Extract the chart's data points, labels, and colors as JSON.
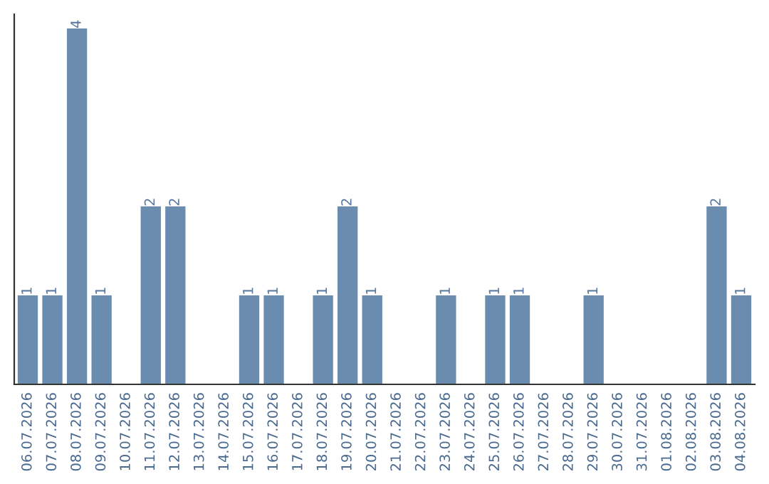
{
  "chart_data": {
    "type": "bar",
    "categories": [
      "06.07.2026",
      "07.07.2026",
      "08.07.2026",
      "09.07.2026",
      "10.07.2026",
      "11.07.2026",
      "12.07.2026",
      "13.07.2026",
      "14.07.2026",
      "15.07.2026",
      "16.07.2026",
      "17.07.2026",
      "18.07.2026",
      "19.07.2026",
      "20.07.2026",
      "21.07.2026",
      "22.07.2026",
      "23.07.2026",
      "24.07.2026",
      "25.07.2026",
      "26.07.2026",
      "27.07.2026",
      "28.07.2026",
      "29.07.2026",
      "30.07.2026",
      "31.07.2026",
      "01.08.2026",
      "02.08.2026",
      "03.08.2026",
      "04.08.2026"
    ],
    "values": [
      1,
      1,
      4,
      1,
      0,
      2,
      2,
      0,
      0,
      1,
      1,
      0,
      1,
      2,
      1,
      0,
      0,
      1,
      0,
      1,
      1,
      0,
      0,
      1,
      0,
      0,
      0,
      0,
      2,
      1
    ],
    "value_labels": [
      "1",
      "1",
      "4",
      "1",
      null,
      "2",
      "2",
      null,
      null,
      "1",
      "1",
      null,
      "1",
      "2",
      "1",
      null,
      null,
      "1",
      null,
      "1",
      "1",
      null,
      null,
      "1",
      null,
      null,
      null,
      null,
      "2",
      "1"
    ],
    "color": "#6a8caf",
    "tick_labels": "x",
    "grid": false,
    "legend": false
  }
}
